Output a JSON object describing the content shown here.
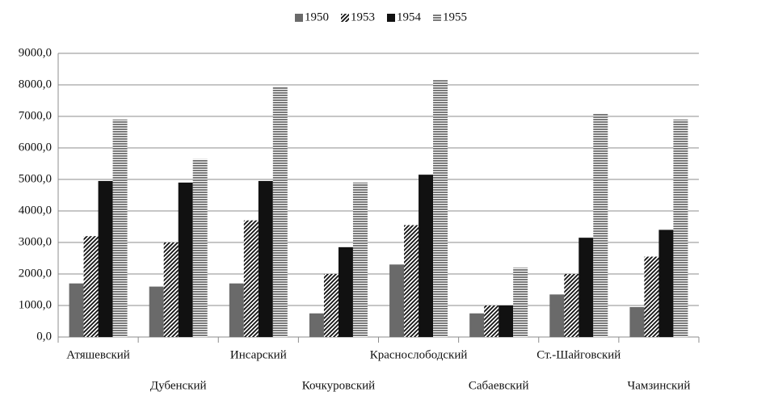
{
  "chart_data": {
    "type": "bar",
    "categories": [
      "Атяшевский",
      "Дубенский",
      "Инсарский",
      "Кочкуровский",
      "Краснослободский",
      "Сабаевский",
      "Ст.-Шайговский",
      "Чамзинский"
    ],
    "series": [
      {
        "name": "1950",
        "color": "#6a6a6a",
        "pattern": "solid",
        "values": [
          1700,
          1600,
          1700,
          750,
          2300,
          750,
          1350,
          950
        ]
      },
      {
        "name": "1953",
        "color": "#111111",
        "pattern": "diagonal",
        "values": [
          3200,
          3000,
          3700,
          2000,
          3550,
          1000,
          2000,
          2550
        ]
      },
      {
        "name": "1954",
        "color": "#111111",
        "pattern": "solid",
        "values": [
          4950,
          4900,
          4950,
          2850,
          5150,
          1000,
          3150,
          3400
        ]
      },
      {
        "name": "1955",
        "color": "#333333",
        "pattern": "horizontal",
        "values": [
          6900,
          5650,
          7950,
          4900,
          8150,
          2200,
          7100,
          6900
        ]
      }
    ],
    "ylim": [
      0,
      9000
    ],
    "yticks": [
      {
        "value": 0,
        "label": "0,0"
      },
      {
        "value": 1000,
        "label": "1000,0"
      },
      {
        "value": 2000,
        "label": "2000,0"
      },
      {
        "value": 3000,
        "label": "3000,0"
      },
      {
        "value": 4000,
        "label": "4000,0"
      },
      {
        "value": 5000,
        "label": "5000,0"
      },
      {
        "value": 6000,
        "label": "6000,0"
      },
      {
        "value": 7000,
        "label": "7000,0"
      },
      {
        "value": 8000,
        "label": "8000,0"
      },
      {
        "value": 9000,
        "label": "9000,0"
      }
    ],
    "grid": true,
    "legend": "top"
  }
}
